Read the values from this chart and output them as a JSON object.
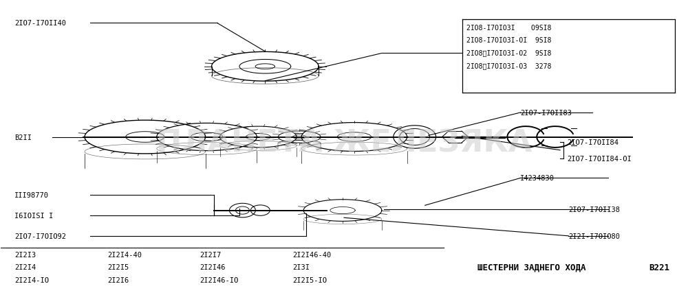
{
  "bg_color": "#ffffff",
  "line_color": "#000000",
  "text_color": "#000000",
  "watermark_text": "ПЛАНЕТА ЖЕЛЕЗЯКА",
  "watermark_color": "#c8c8c8",
  "watermark_alpha": 0.5,
  "title_bottom": "ШЕСТЕРНИ ЗАДНЕГО ХОДА",
  "title_right": "В221",
  "bottom_labels_col1": [
    "2I2I3",
    "2I2I4",
    "2I2I4-IO"
  ],
  "bottom_labels_col2": [
    "2I2I4-40",
    "2I2I5",
    "2I2I6"
  ],
  "bottom_labels_col3": [
    "2I2I7",
    "2I2I46",
    "2I2I46-IO"
  ],
  "bottom_labels_col4": [
    "2I2I46-40",
    "2I3I",
    "2I2I5-IO"
  ],
  "figsize": [
    10.0,
    4.31
  ],
  "dpi": 100
}
